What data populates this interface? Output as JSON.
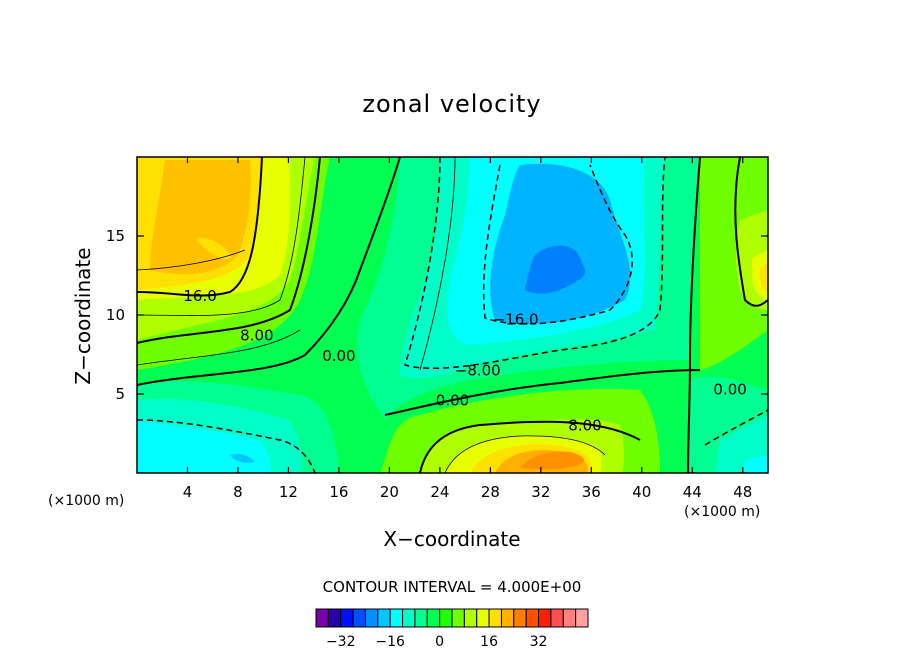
{
  "chart_data": {
    "type": "contour",
    "title": "zonal velocity",
    "xlabel": "X−coordinate",
    "ylabel": "Z−coordinate",
    "x_unit_note": "(×1000 m)",
    "xlim": [
      0,
      50
    ],
    "ylim": [
      0,
      20
    ],
    "x_ticks": [
      4,
      8,
      12,
      16,
      20,
      24,
      28,
      32,
      36,
      40,
      44,
      48
    ],
    "y_ticks": [
      5,
      10,
      15
    ],
    "contour_interval_text": "CONTOUR INTERVAL = 4.000E+00",
    "contour_labels": [
      {
        "text": "16.0",
        "x": 5,
        "y": 11.2
      },
      {
        "text": "8.00",
        "x": 9.5,
        "y": 8.7
      },
      {
        "text": "0.00",
        "x": 16,
        "y": 7.4
      },
      {
        "text": "−8.00",
        "x": 27,
        "y": 6.5
      },
      {
        "text": "−16.0",
        "x": 30,
        "y": 9.7
      },
      {
        "text": "0.00",
        "x": 25,
        "y": 4.6
      },
      {
        "text": "8.00",
        "x": 35.5,
        "y": 3.0
      },
      {
        "text": "0.00",
        "x": 47,
        "y": 5.3
      }
    ],
    "colorbar": {
      "colors": [
        "#7a00a8",
        "#2a00a8",
        "#0010ff",
        "#0050ff",
        "#0090ff",
        "#00c8ff",
        "#00ffff",
        "#00ffc8",
        "#00ff90",
        "#00ff50",
        "#20ff00",
        "#70ff00",
        "#b0ff00",
        "#e8ff00",
        "#ffe000",
        "#ffb000",
        "#ff8000",
        "#ff5000",
        "#ff2000",
        "#ff5050",
        "#ff8080",
        "#ffa0a0"
      ],
      "tick_labels": [
        "−32",
        "−16",
        "0",
        "16",
        "32"
      ],
      "tick_values": [
        -32,
        -16,
        0,
        16,
        32
      ]
    }
  }
}
